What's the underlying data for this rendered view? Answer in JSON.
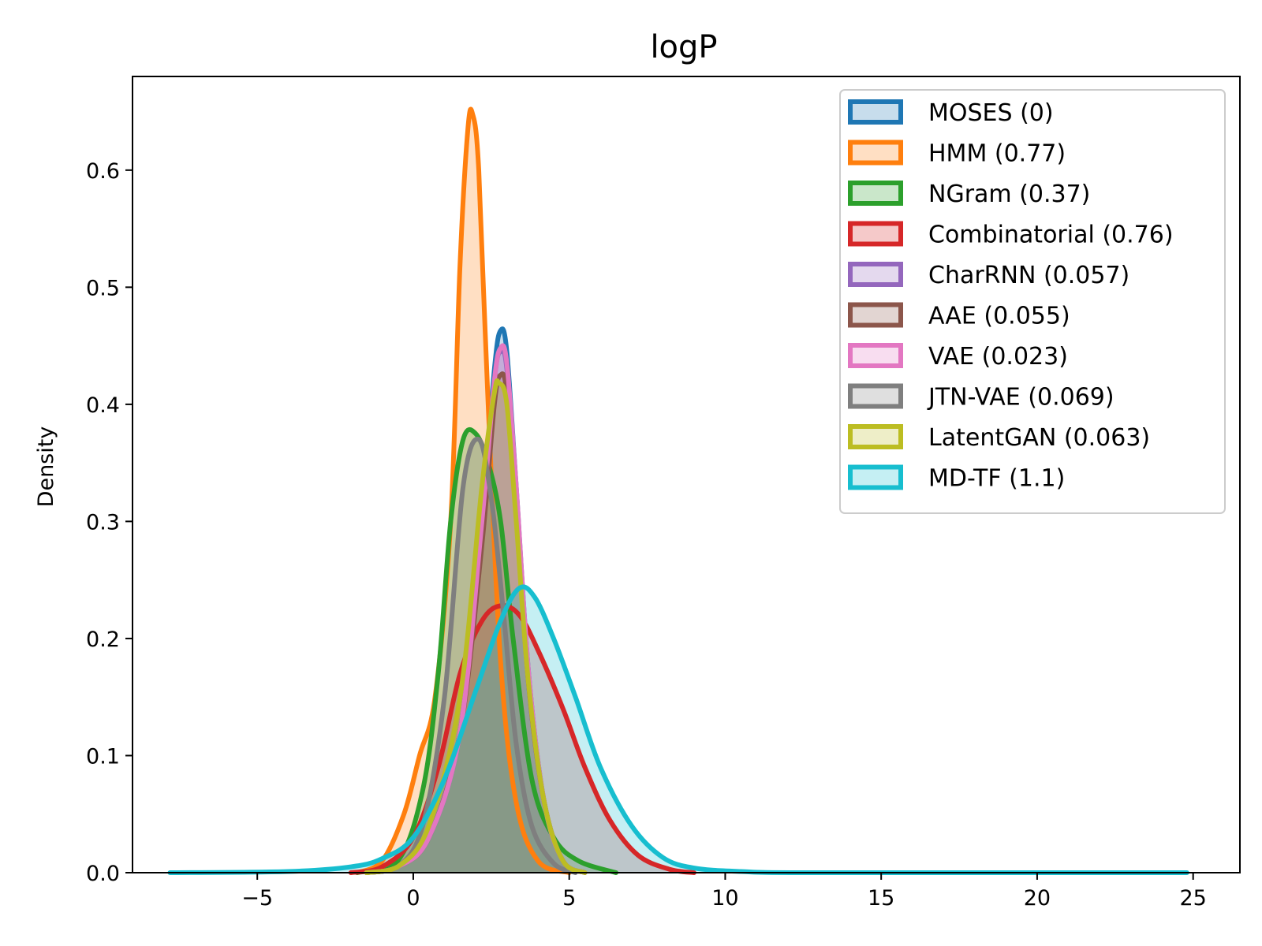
{
  "chart_data": {
    "type": "area",
    "title": "logP",
    "xlabel": "",
    "ylabel": "Density",
    "xlim": [
      -9.0,
      26.5
    ],
    "ylim": [
      0.0,
      0.68
    ],
    "xticks": [
      -5,
      0,
      5,
      10,
      15,
      20,
      25
    ],
    "xtick_labels": [
      "−5",
      "0",
      "5",
      "10",
      "15",
      "20",
      "25"
    ],
    "yticks": [
      0.0,
      0.1,
      0.2,
      0.3,
      0.4,
      0.5,
      0.6
    ],
    "ytick_labels": [
      "0.0",
      "0.1",
      "0.2",
      "0.3",
      "0.4",
      "0.5",
      "0.6"
    ],
    "grid": false,
    "legend_position": "top-right",
    "series": [
      {
        "name": "MOSES (0)",
        "color": "#1f77b4",
        "points": [
          [
            -1.5,
            0
          ],
          [
            -0.5,
            0.005
          ],
          [
            0.5,
            0.03
          ],
          [
            1.5,
            0.12
          ],
          [
            2.2,
            0.3
          ],
          [
            2.6,
            0.43
          ],
          [
            2.8,
            0.463
          ],
          [
            3.0,
            0.445
          ],
          [
            3.3,
            0.33
          ],
          [
            3.7,
            0.17
          ],
          [
            4.2,
            0.06
          ],
          [
            4.8,
            0.01
          ],
          [
            5.5,
            0
          ]
        ]
      },
      {
        "name": "HMM (0.77)",
        "color": "#ff7f0e",
        "points": [
          [
            -1.8,
            0
          ],
          [
            -1.0,
            0.01
          ],
          [
            -0.3,
            0.05
          ],
          [
            0.2,
            0.1
          ],
          [
            0.7,
            0.15
          ],
          [
            1.2,
            0.3
          ],
          [
            1.5,
            0.52
          ],
          [
            1.75,
            0.635
          ],
          [
            1.9,
            0.648
          ],
          [
            2.1,
            0.6
          ],
          [
            2.4,
            0.4
          ],
          [
            2.8,
            0.18
          ],
          [
            3.3,
            0.06
          ],
          [
            4.0,
            0.01
          ],
          [
            5.0,
            0
          ]
        ]
      },
      {
        "name": "NGram (0.37)",
        "color": "#2ca02c",
        "points": [
          [
            -1.8,
            0
          ],
          [
            -0.5,
            0.01
          ],
          [
            0.3,
            0.07
          ],
          [
            0.8,
            0.17
          ],
          [
            1.2,
            0.3
          ],
          [
            1.6,
            0.37
          ],
          [
            2.0,
            0.375
          ],
          [
            2.4,
            0.35
          ],
          [
            2.8,
            0.3
          ],
          [
            3.2,
            0.2
          ],
          [
            3.8,
            0.08
          ],
          [
            4.5,
            0.03
          ],
          [
            5.3,
            0.01
          ],
          [
            6.5,
            0
          ]
        ]
      },
      {
        "name": "Combinatorial (0.76)",
        "color": "#d62728",
        "points": [
          [
            -2.0,
            0
          ],
          [
            -1.0,
            0.005
          ],
          [
            0,
            0.03
          ],
          [
            0.8,
            0.09
          ],
          [
            1.5,
            0.17
          ],
          [
            2.2,
            0.215
          ],
          [
            2.8,
            0.228
          ],
          [
            3.4,
            0.22
          ],
          [
            4.0,
            0.19
          ],
          [
            4.8,
            0.14
          ],
          [
            5.5,
            0.09
          ],
          [
            6.3,
            0.045
          ],
          [
            7.2,
            0.015
          ],
          [
            8.2,
            0.003
          ],
          [
            9.0,
            0
          ]
        ]
      },
      {
        "name": "CharRNN (0.057)",
        "color": "#9467bd",
        "points": [
          [
            -1.5,
            0
          ],
          [
            -0.5,
            0.005
          ],
          [
            0.5,
            0.03
          ],
          [
            1.5,
            0.12
          ],
          [
            2.2,
            0.29
          ],
          [
            2.6,
            0.42
          ],
          [
            2.8,
            0.445
          ],
          [
            3.0,
            0.43
          ],
          [
            3.3,
            0.32
          ],
          [
            3.7,
            0.16
          ],
          [
            4.2,
            0.06
          ],
          [
            4.8,
            0.01
          ],
          [
            5.5,
            0
          ]
        ]
      },
      {
        "name": "AAE (0.055)",
        "color": "#8c564b",
        "points": [
          [
            -1.5,
            0
          ],
          [
            -0.5,
            0.005
          ],
          [
            0.5,
            0.03
          ],
          [
            1.5,
            0.12
          ],
          [
            2.2,
            0.28
          ],
          [
            2.6,
            0.4
          ],
          [
            2.8,
            0.425
          ],
          [
            3.0,
            0.41
          ],
          [
            3.3,
            0.31
          ],
          [
            3.7,
            0.16
          ],
          [
            4.2,
            0.06
          ],
          [
            4.8,
            0.01
          ],
          [
            5.5,
            0
          ]
        ]
      },
      {
        "name": "VAE (0.023)",
        "color": "#e377c2",
        "points": [
          [
            -1.5,
            0
          ],
          [
            -0.5,
            0.005
          ],
          [
            0.5,
            0.03
          ],
          [
            1.5,
            0.12
          ],
          [
            2.2,
            0.3
          ],
          [
            2.6,
            0.42
          ],
          [
            2.8,
            0.448
          ],
          [
            3.0,
            0.435
          ],
          [
            3.3,
            0.33
          ],
          [
            3.7,
            0.17
          ],
          [
            4.2,
            0.06
          ],
          [
            4.8,
            0.01
          ],
          [
            5.5,
            0
          ]
        ]
      },
      {
        "name": "JTN-VAE (0.069)",
        "color": "#7f7f7f",
        "points": [
          [
            -1.5,
            0
          ],
          [
            -0.5,
            0.005
          ],
          [
            0.3,
            0.04
          ],
          [
            1.0,
            0.15
          ],
          [
            1.6,
            0.33
          ],
          [
            2.1,
            0.37
          ],
          [
            2.5,
            0.32
          ],
          [
            2.9,
            0.22
          ],
          [
            3.3,
            0.11
          ],
          [
            3.8,
            0.04
          ],
          [
            4.5,
            0.008
          ],
          [
            5.2,
            0
          ]
        ]
      },
      {
        "name": "LatentGAN (0.063)",
        "color": "#bcbd22",
        "points": [
          [
            -1.5,
            0
          ],
          [
            -0.5,
            0.005
          ],
          [
            0.5,
            0.04
          ],
          [
            1.5,
            0.15
          ],
          [
            2.2,
            0.33
          ],
          [
            2.6,
            0.41
          ],
          [
            2.75,
            0.418
          ],
          [
            3.0,
            0.4
          ],
          [
            3.3,
            0.3
          ],
          [
            3.7,
            0.16
          ],
          [
            4.2,
            0.06
          ],
          [
            4.8,
            0.01
          ],
          [
            5.5,
            0
          ]
        ]
      },
      {
        "name": "MD-TF (1.1)",
        "color": "#17becf",
        "points": [
          [
            -7.8,
            0
          ],
          [
            -4,
            0.001
          ],
          [
            -2,
            0.005
          ],
          [
            -1,
            0.012
          ],
          [
            0,
            0.03
          ],
          [
            1.0,
            0.08
          ],
          [
            2.0,
            0.155
          ],
          [
            2.8,
            0.215
          ],
          [
            3.4,
            0.243
          ],
          [
            3.9,
            0.235
          ],
          [
            4.5,
            0.2
          ],
          [
            5.2,
            0.15
          ],
          [
            6.0,
            0.09
          ],
          [
            7.0,
            0.04
          ],
          [
            8.0,
            0.013
          ],
          [
            9.0,
            0.004
          ],
          [
            10.5,
            0.001
          ],
          [
            13,
            0
          ],
          [
            24.8,
            0
          ]
        ]
      }
    ]
  }
}
